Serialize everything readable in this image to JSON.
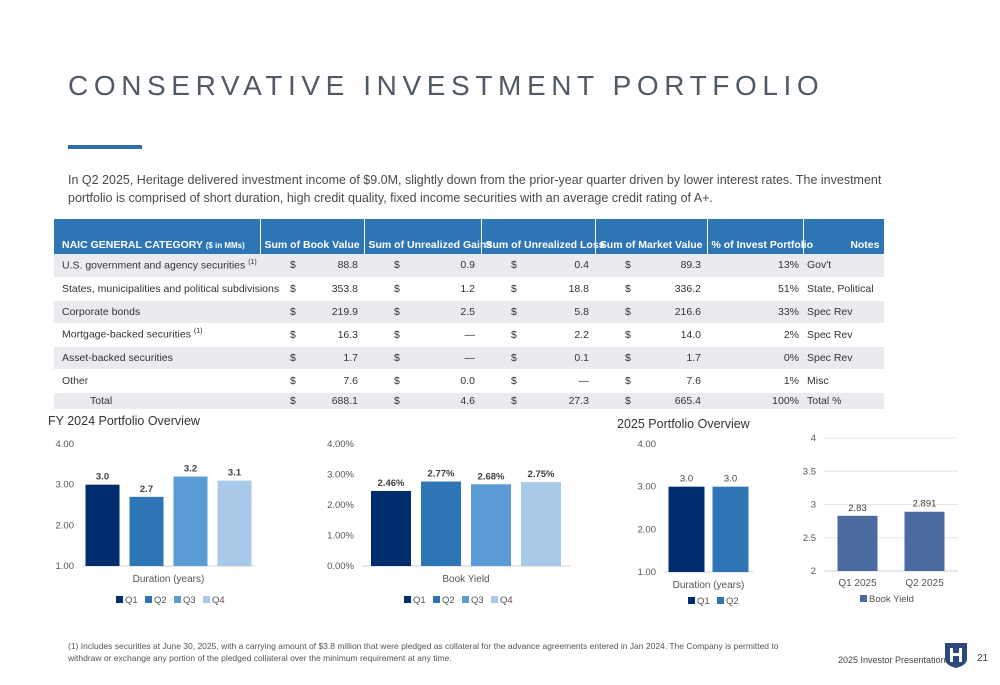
{
  "page": {
    "title": "CONSERVATIVE INVESTMENT PORTFOLIO",
    "intro": "In Q2 2025, Heritage delivered investment income of $9.0M, slightly down from the prior-year quarter driven by lower interest rates. The investment portfolio is comprised of short duration, high credit quality, fixed income securities with an average credit rating of A+.",
    "footnote": "(1) Includes securities at June 30, 2025, with a carrying amount of $3.8 million that were pledged as collateral for the advance agreements entered in Jan 2024. The Company is permitted to withdraw or exchange any portion of the pledged collateral over the minimum requirement at any time.",
    "footer_label": "2025 Investor Presentation",
    "page_number": "21",
    "accent_color": "#2e75b6",
    "logo_icon": "heritage-logo-icon"
  },
  "table": {
    "headers": {
      "category": "NAIC GENERAL CATEGORY",
      "category_unit": "($ in MMs)",
      "book": "Sum of Book Value",
      "gains": "Sum of Unrealized Gains",
      "loss": "Sum of Unrealized Loss",
      "market": "Sum of Market Value",
      "pct": "% of Invest Portfolio",
      "notes": "Notes"
    },
    "currency": "$",
    "rows": [
      {
        "category": "U.S. government and agency securities",
        "sup": "(1)",
        "book": "88.8",
        "gains": "0.9",
        "loss": "0.4",
        "market": "89.3",
        "pct": "13%",
        "notes": "Gov't"
      },
      {
        "category": "States, municipalities and political subdivisions",
        "sup": "",
        "book": "353.8",
        "gains": "1.2",
        "loss": "18.8",
        "market": "336.2",
        "pct": "51%",
        "notes": "State, Political"
      },
      {
        "category": "Corporate bonds",
        "sup": "",
        "book": "219.9",
        "gains": "2.5",
        "loss": "5.8",
        "market": "216.6",
        "pct": "33%",
        "notes": "Spec Rev"
      },
      {
        "category": "Mortgage-backed securities",
        "sup": "(1)",
        "book": "16.3",
        "gains": "—",
        "loss": "2.2",
        "market": "14.0",
        "pct": "2%",
        "notes": "Spec Rev"
      },
      {
        "category": "Asset-backed securities",
        "sup": "",
        "book": "1.7",
        "gains": "—",
        "loss": "0.1",
        "market": "1.7",
        "pct": "0%",
        "notes": "Spec Rev"
      },
      {
        "category": "Other",
        "sup": "",
        "book": "7.6",
        "gains": "0.0",
        "loss": "—",
        "market": "7.6",
        "pct": "1%",
        "notes": "Misc"
      }
    ],
    "total": {
      "category": "Total",
      "book": "688.1",
      "gains": "4.6",
      "loss": "27.3",
      "market": "665.4",
      "pct": "100%",
      "notes": "Total %"
    }
  },
  "sections": {
    "fy2024": "FY 2024 Portfolio Overview",
    "y2025": "2025 Portfolio Overview"
  },
  "chart_data": [
    {
      "type": "bar",
      "id": "fy24-duration",
      "categories": [
        "Q1",
        "Q2",
        "Q3",
        "Q4"
      ],
      "values": [
        3.0,
        2.7,
        3.2,
        3.1
      ],
      "labels": [
        "3.0",
        "2.7",
        "3.2",
        "3.1"
      ],
      "yticks": [
        "4.00",
        "3.00",
        "2.00",
        "1.00"
      ],
      "ylim": [
        1,
        4
      ],
      "xlabel": "Duration (years)",
      "legend": [
        "Q1",
        "Q2",
        "Q3",
        "Q4"
      ],
      "colors": [
        "#002d6e",
        "#2e75b6",
        "#5b9bd5",
        "#a9c9e8"
      ],
      "bold_labels": true
    },
    {
      "type": "bar",
      "id": "fy24-yield",
      "categories": [
        "Q1",
        "Q2",
        "Q3",
        "Q4"
      ],
      "values": [
        2.46,
        2.77,
        2.68,
        2.75
      ],
      "labels": [
        "2.46%",
        "2.77%",
        "2.68%",
        "2.75%"
      ],
      "yticks": [
        "4.00%",
        "3.00%",
        "2.00%",
        "1.00%",
        "0.00%"
      ],
      "ylim": [
        0,
        4
      ],
      "xlabel": "Book Yield",
      "legend": [
        "Q1",
        "Q2",
        "Q3",
        "Q4"
      ],
      "colors": [
        "#002d6e",
        "#2e75b6",
        "#5b9bd5",
        "#a9c9e8"
      ],
      "bold_labels": true
    },
    {
      "type": "bar",
      "id": "y25-duration",
      "categories": [
        "Q1",
        "Q2"
      ],
      "values": [
        3.0,
        3.0
      ],
      "labels": [
        "3.0",
        "3.0"
      ],
      "yticks": [
        "4.00",
        "3.00",
        "2.00",
        "1.00"
      ],
      "ylim": [
        1,
        4
      ],
      "xlabel": "Duration (years)",
      "legend": [
        "Q1",
        "Q2"
      ],
      "colors": [
        "#002d6e",
        "#2e75b6"
      ],
      "bold_labels": false
    },
    {
      "type": "bar",
      "id": "y25-yield",
      "categories": [
        "Q1 2025",
        "Q2 2025"
      ],
      "values": [
        2.83,
        2.891
      ],
      "labels": [
        "2.83",
        "2.891"
      ],
      "yticks": [
        "4",
        "3.5",
        "3",
        "2.5",
        "2"
      ],
      "ylim": [
        2,
        4
      ],
      "xlabel": "",
      "legend": [
        "Book Yield"
      ],
      "colors": [
        "#4a6aa0",
        "#4a6aa0"
      ],
      "bold_labels": false
    }
  ]
}
